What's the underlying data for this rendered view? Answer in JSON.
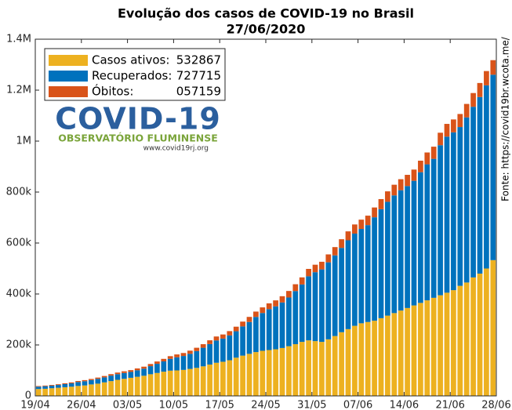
{
  "chart_data": {
    "type": "stacked_bar",
    "title": "Evolução dos casos de COVID-19 no Brasil",
    "subtitle": "27/06/2020",
    "source": "Fonte: https://covid19br.wcota.me/",
    "logo": {
      "title": "COVID-19",
      "subtitle": "OBSERVATÓRIO FLUMINENSE",
      "url": "www.covid19rj.org"
    },
    "categories": [
      "19/04",
      null,
      null,
      null,
      null,
      null,
      null,
      "26/04",
      null,
      null,
      null,
      null,
      null,
      null,
      "03/05",
      null,
      null,
      null,
      null,
      null,
      null,
      "10/05",
      null,
      null,
      null,
      null,
      null,
      null,
      "17/05",
      null,
      null,
      null,
      null,
      null,
      null,
      "24/05",
      null,
      null,
      null,
      null,
      null,
      null,
      "31/05",
      null,
      null,
      null,
      null,
      null,
      null,
      "07/06",
      null,
      null,
      null,
      null,
      null,
      null,
      "14/06",
      null,
      null,
      null,
      null,
      null,
      null,
      "21/06",
      null,
      null,
      null,
      null,
      null,
      null,
      "28/06"
    ],
    "ylim": [
      0,
      1400000
    ],
    "yticks": [
      0,
      {
        "value": 200000,
        "label": "200k"
      },
      {
        "value": 400000,
        "label": "400k"
      },
      {
        "value": 600000,
        "label": "600k"
      },
      {
        "value": 800000,
        "label": "800k"
      },
      {
        "value": 1000000,
        "label": "1M"
      },
      {
        "value": 1200000,
        "label": "1.2M"
      },
      {
        "value": 1400000,
        "label": "1.4M"
      }
    ],
    "grid": false,
    "legend": "upper left",
    "series": [
      {
        "name": "Casos ativos:",
        "legend_value": "532867",
        "color": "#EDB120",
        "values": [
          27000,
          28000,
          30000,
          32000,
          34000,
          36000,
          39000,
          41000,
          45000,
          48000,
          53000,
          58000,
          63000,
          67000,
          71000,
          75000,
          79000,
          85000,
          90000,
          95000,
          99000,
          100000,
          102000,
          106000,
          110000,
          116000,
          123000,
          130000,
          134000,
          140000,
          150000,
          158000,
          165000,
          172000,
          177000,
          180000,
          183000,
          188000,
          195000,
          203000,
          212000,
          218000,
          215000,
          212000,
          222000,
          235000,
          250000,
          262000,
          275000,
          285000,
          290000,
          295000,
          305000,
          315000,
          325000,
          335000,
          345000,
          355000,
          365000,
          375000,
          385000,
          395000,
          405000,
          415000,
          432000,
          445000,
          465000,
          480000,
          500000,
          532867,
          null
        ]
      },
      {
        "name": "Recuperados:",
        "legend_value": "727715",
        "color": "#0072BD",
        "values": [
          9190,
          9990,
          10340,
          10850,
          12160,
          13290,
          15450,
          16680,
          16900,
          18810,
          19650,
          21480,
          22260,
          22810,
          23120,
          25460,
          27800,
          31680,
          35960,
          40430,
          46310,
          51580,
          54680,
          59130,
          65820,
          72930,
          80400,
          87510,
          90960,
          97370,
          103650,
          114720,
          125040,
          137840,
          148390,
          160540,
          168430,
          178710,
          191220,
          208490,
          225290,
          251610,
          270540,
          284510,
          302180,
          316470,
          330920,
          348740,
          361920,
          370300,
          380280,
          406090,
          427740,
          446770,
          461980,
          472180,
          478660,
          489150,
          512950,
          533870,
          545390,
          588960,
          612600,
          619420,
          623200,
          648140,
          669760,
          693060,
          718860,
          727715,
          null
        ]
      },
      {
        "name": "Óbitos:",
        "legend_value": "057159",
        "color": "#D95319",
        "values": [
          2462,
          2587,
          2741,
          2906,
          3331,
          3704,
          4057,
          4205,
          4603,
          5083,
          5513,
          5901,
          6329,
          6750,
          7025,
          7321,
          7921,
          8536,
          9146,
          9897,
          10627,
          11123,
          11653,
          12461,
          13149,
          13993,
          14817,
          15633,
          16118,
          16853,
          17983,
          18859,
          20047,
          21048,
          22013,
          22666,
          23473,
          24512,
          25598,
          26754,
          27878,
          28834,
          29314,
          29937,
          31199,
          32548,
          34021,
          35026,
          35930,
          36455,
          37134,
          38406,
          39680,
          41058,
          41828,
          43332,
          43959,
          44118,
          45241,
          46510,
          47748,
          48954,
          49976,
          50617,
          51271,
          52771,
          53874,
          55054,
          56109,
          57159,
          null
        ]
      }
    ]
  }
}
